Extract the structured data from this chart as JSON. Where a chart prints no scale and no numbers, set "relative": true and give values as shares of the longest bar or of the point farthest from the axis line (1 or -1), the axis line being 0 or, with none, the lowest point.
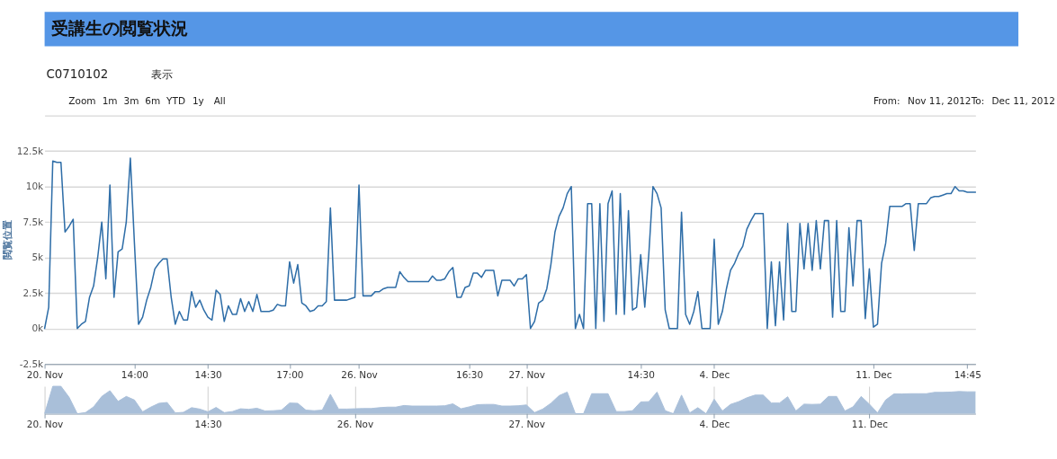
{
  "chart_data": [
    {
      "type": "line",
      "title": "受講生の閲覧状況",
      "ylabel": "閲覧位置",
      "annotations": [
        "C0710102",
        "表示",
        "Zoom",
        "1m",
        "3m",
        "6m",
        "YTD",
        "1y",
        "All",
        "From:",
        "Nov 11, 2012",
        "To:",
        "Dec 11, 2012"
      ],
      "categories": [
        "20. Nov",
        null,
        null,
        null,
        null,
        null,
        null,
        null,
        null,
        null,
        null,
        null,
        null,
        null,
        null,
        null,
        null,
        null,
        null,
        null,
        null,
        null,
        "14:00",
        null,
        null,
        null,
        null,
        null,
        null,
        null,
        null,
        null,
        null,
        null,
        null,
        null,
        null,
        null,
        null,
        null,
        "14:30",
        null,
        null,
        null,
        null,
        null,
        null,
        null,
        null,
        null,
        null,
        null,
        null,
        null,
        null,
        null,
        null,
        null,
        null,
        null,
        "17:00",
        null,
        null,
        null,
        null,
        null,
        null,
        null,
        null,
        null,
        null,
        null,
        null,
        null,
        null,
        null,
        null,
        "26. Nov",
        null,
        null,
        null,
        null,
        null,
        null,
        null,
        null,
        null,
        null,
        null,
        null,
        null,
        null,
        null,
        null,
        null,
        null,
        null,
        null,
        null,
        null,
        null,
        null,
        null,
        null,
        "16:30",
        null,
        null,
        null,
        null,
        null,
        null,
        null,
        null,
        null,
        null,
        null,
        null,
        null,
        "27. Nov",
        null,
        null,
        null,
        null,
        null,
        null,
        null,
        null,
        null,
        null,
        null,
        null,
        null,
        null,
        null,
        null,
        null,
        null,
        null,
        null,
        null,
        null,
        null,
        null,
        null,
        null,
        null,
        "14:30",
        null,
        null,
        null,
        null,
        null,
        null,
        null,
        null,
        null,
        null,
        null,
        null,
        null,
        null,
        null,
        null,
        null,
        "4. Dec",
        null,
        null,
        null,
        null,
        null,
        null,
        null,
        null,
        null,
        null,
        null,
        null,
        null,
        null,
        null,
        null,
        null,
        null,
        null,
        null,
        null,
        null,
        null,
        null,
        null,
        null,
        null,
        null,
        null,
        null,
        null,
        null,
        null,
        null,
        null,
        null,
        null,
        null,
        "11. Dec",
        null,
        null,
        null,
        null,
        null,
        null,
        null,
        null,
        null,
        null,
        null,
        null,
        null,
        null,
        null,
        null,
        null,
        null,
        null,
        null,
        null,
        null,
        "14:45",
        null,
        null
      ],
      "series": [
        {
          "color": "#2f6ea8",
          "values": [
            0,
            1500,
            11800,
            11700,
            11700,
            6800,
            7200,
            7700,
            0,
            300,
            500,
            2200,
            3000,
            5000,
            7500,
            3500,
            10100,
            2200,
            5400,
            5600,
            7500,
            12000,
            6000,
            300,
            800,
            2000,
            2900,
            4200,
            4600,
            4900,
            4900,
            2200,
            300,
            1200,
            600,
            600,
            2600,
            1500,
            2000,
            1300,
            800,
            600,
            2700,
            2400,
            500,
            1600,
            1000,
            1000,
            2100,
            1200,
            1900,
            1200,
            2400,
            1200,
            1200,
            1200,
            1300,
            1700,
            1600,
            1600,
            4700,
            3200,
            4500,
            1800,
            1600,
            1200,
            1300,
            1600,
            1600,
            1900,
            8500,
            2000,
            2000,
            2000,
            2000,
            2100,
            2200,
            10100,
            2300,
            2300,
            2300,
            2600,
            2600,
            2800,
            2900,
            2900,
            2900,
            4000,
            3600,
            3300,
            3300,
            3300,
            3300,
            3300,
            3300,
            3700,
            3400,
            3400,
            3500,
            4000,
            4300,
            2200,
            2200,
            2900,
            3000,
            3900,
            3900,
            3600,
            4100,
            4100,
            4100,
            2300,
            3400,
            3400,
            3400,
            3000,
            3500,
            3500,
            3800,
            0,
            500,
            1800,
            2000,
            2800,
            4500,
            6800,
            7900,
            8500,
            9500,
            10000,
            0,
            1000,
            0,
            8800,
            8800,
            0,
            8800,
            500,
            8800,
            9700,
            1000,
            9500,
            1000,
            8300,
            1300,
            1500,
            5200,
            1500,
            5300,
            10000,
            9500,
            8500,
            1300,
            0,
            0,
            0,
            8200,
            1000,
            300,
            1200,
            2600,
            0,
            0,
            0,
            6300,
            300,
            1200,
            2800,
            4100,
            4600,
            5300,
            5800,
            7000,
            7600,
            8100,
            8100,
            8100,
            0,
            4700,
            200,
            4700,
            600,
            7400,
            1200,
            1200,
            7400,
            4200,
            7400,
            4100,
            7600,
            4200,
            7600,
            7600,
            800,
            7600,
            1200,
            1200,
            7100,
            3000,
            7600,
            7600,
            700,
            4200,
            100,
            300,
            4600,
            6000,
            8600,
            8600,
            8600,
            8600,
            8800,
            8800,
            5500,
            8800,
            8800,
            8800,
            9200,
            9300,
            9300,
            9400,
            9500,
            9500,
            10000,
            9700,
            9700,
            9600,
            9600,
            9600
          ]
        }
      ],
      "ylim": [
        -2500,
        15000
      ],
      "yticks": [
        {
          "value": -2500,
          "label": "-2.5k"
        },
        {
          "value": 0,
          "label": "0k"
        },
        {
          "value": 2500,
          "label": "2.5k"
        },
        {
          "value": 5000,
          "label": "5k"
        },
        {
          "value": 7500,
          "label": "7.5k"
        },
        {
          "value": 10000,
          "label": "10k"
        },
        {
          "value": 12500,
          "label": "12.5k"
        },
        {
          "value": 15000,
          "label": null
        }
      ],
      "grid": "y"
    },
    {
      "type": "area",
      "relative": true,
      "tick_labels": "x",
      "categories": [
        "20. Nov",
        null,
        null,
        null,
        null,
        null,
        null,
        null,
        null,
        null,
        null,
        null,
        null,
        null,
        null,
        null,
        null,
        null,
        null,
        null,
        "14:30",
        null,
        null,
        null,
        null,
        null,
        null,
        null,
        null,
        null,
        null,
        null,
        null,
        null,
        null,
        null,
        null,
        null,
        "26. Nov",
        null,
        null,
        null,
        null,
        null,
        null,
        null,
        null,
        null,
        null,
        null,
        null,
        null,
        null,
        null,
        null,
        null,
        null,
        null,
        null,
        "27. Nov",
        null,
        null,
        null,
        null,
        null,
        null,
        null,
        null,
        null,
        null,
        null,
        null,
        null,
        null,
        null,
        null,
        null,
        null,
        null,
        null,
        null,
        null,
        "4. Dec",
        null,
        null,
        null,
        null,
        null,
        null,
        null,
        null,
        null,
        null,
        null,
        null,
        null,
        null,
        null,
        null,
        null,
        null,
        "11. Dec",
        null,
        null,
        null,
        null,
        null,
        null,
        null,
        null,
        null,
        null,
        null,
        null,
        null
      ],
      "series": [
        {
          "color": "#a9bfd9",
          "values": [
            0,
            1,
            1,
            0.6,
            0,
            0.04,
            0.25,
            0.63,
            0.84,
            0.45,
            0.63,
            0.5,
            0.07,
            0.24,
            0.38,
            0.41,
            0.03,
            0.05,
            0.22,
            0.17,
            0.07,
            0.23,
            0.04,
            0.08,
            0.18,
            0.16,
            0.2,
            0.1,
            0.11,
            0.13,
            0.39,
            0.38,
            0.13,
            0.11,
            0.13,
            0.71,
            0.17,
            0.17,
            0.18,
            0.19,
            0.19,
            0.22,
            0.24,
            0.24,
            0.3,
            0.28,
            0.28,
            0.28,
            0.28,
            0.29,
            0.36,
            0.18,
            0.25,
            0.33,
            0.34,
            0.34,
            0.28,
            0.28,
            0.29,
            0.32,
            0.04,
            0.17,
            0.38,
            0.66,
            0.79,
            0,
            0,
            0.73,
            0.73,
            0.73,
            0.08,
            0.08,
            0.11,
            0.43,
            0.44,
            0.79,
            0.11,
            0,
            0.68,
            0.03,
            0.22,
            0,
            0.53,
            0.1,
            0.34,
            0.44,
            0.58,
            0.68,
            0.68,
            0.39,
            0.39,
            0.62,
            0.1,
            0.35,
            0.34,
            0.35,
            0.63,
            0.63,
            0.1,
            0.25,
            0.63,
            0.35,
            0.03,
            0.5,
            0.72,
            0.72,
            0.73,
            0.73,
            0.73,
            0.78,
            0.78,
            0.79,
            0.81,
            0.8,
            0.8
          ]
        }
      ],
      "grid": "x"
    }
  ]
}
